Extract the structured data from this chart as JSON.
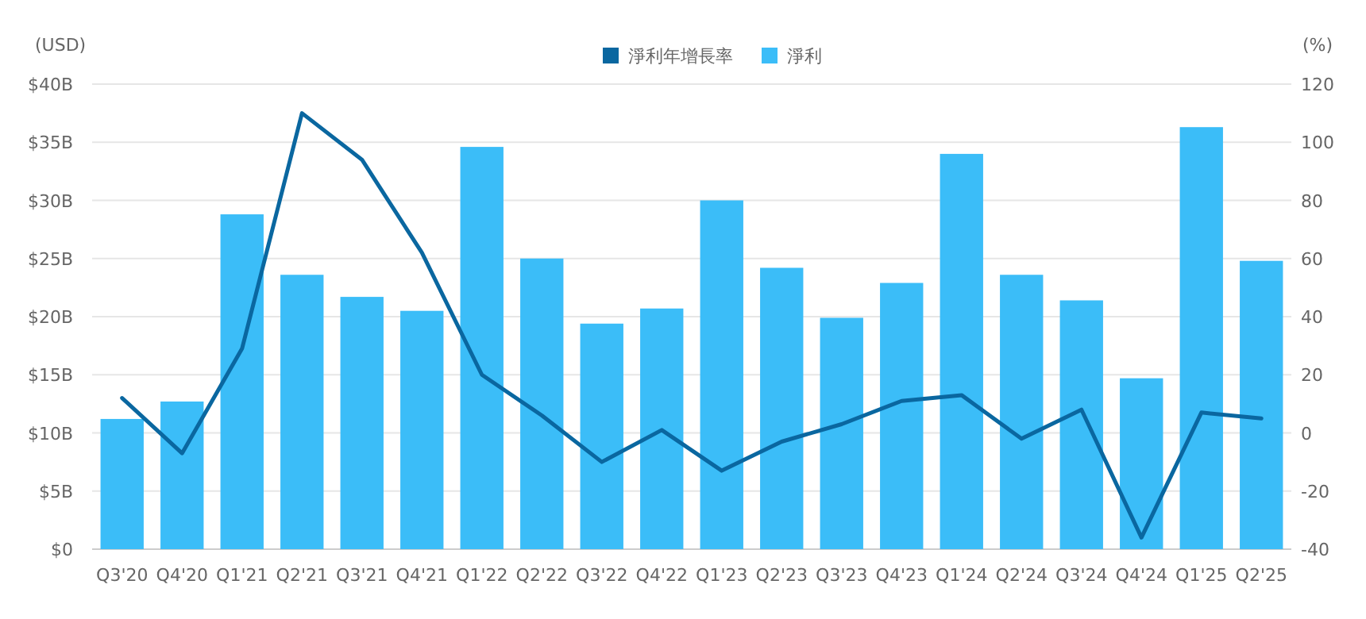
{
  "chart_data": {
    "type": "bar",
    "ylabel": "(USD)",
    "y2label": "(%)",
    "categories": [
      "Q3'20",
      "Q4'20",
      "Q1'21",
      "Q2'21",
      "Q3'21",
      "Q4'21",
      "Q1'22",
      "Q2'22",
      "Q3'22",
      "Q4'22",
      "Q1'23",
      "Q2'23",
      "Q3'23",
      "Q4'23",
      "Q1'24",
      "Q2'24",
      "Q3'24",
      "Q4'24",
      "Q1'25",
      "Q2'25"
    ],
    "series": [
      {
        "name": "淨利年增長率",
        "type": "line",
        "axis": "y2",
        "color": "#0a67a0",
        "values": [
          12,
          -7,
          29,
          110,
          94,
          62,
          20,
          6,
          -10,
          1,
          -13,
          -3,
          3,
          11,
          13,
          -2,
          8,
          -36,
          7,
          5
        ]
      },
      {
        "name": "淨利",
        "color": "#3bbdf8",
        "values": [
          11.2,
          12.7,
          28.8,
          23.6,
          21.7,
          20.5,
          34.6,
          25.0,
          19.4,
          20.7,
          30.0,
          24.2,
          19.9,
          22.9,
          34.0,
          23.6,
          21.4,
          14.7,
          36.3,
          24.8
        ]
      }
    ],
    "ylim": [
      0,
      40
    ],
    "yticks": [
      {
        "value": 0,
        "label": "$0"
      },
      {
        "value": 5,
        "label": "$5B"
      },
      {
        "value": 10,
        "label": "$10B"
      },
      {
        "value": 15,
        "label": "$15B"
      },
      {
        "value": 20,
        "label": "$20B"
      },
      {
        "value": 25,
        "label": "$25B"
      },
      {
        "value": 30,
        "label": "$30B"
      },
      {
        "value": 35,
        "label": "$35B"
      },
      {
        "value": 40,
        "label": "$40B"
      }
    ],
    "y2lim": [
      -40,
      120
    ],
    "y2ticks": [
      -40,
      -20,
      0,
      20,
      40,
      60,
      80,
      100,
      120
    ],
    "grid": "y",
    "legend": "top",
    "marker": "none",
    "line_style": "solid"
  }
}
